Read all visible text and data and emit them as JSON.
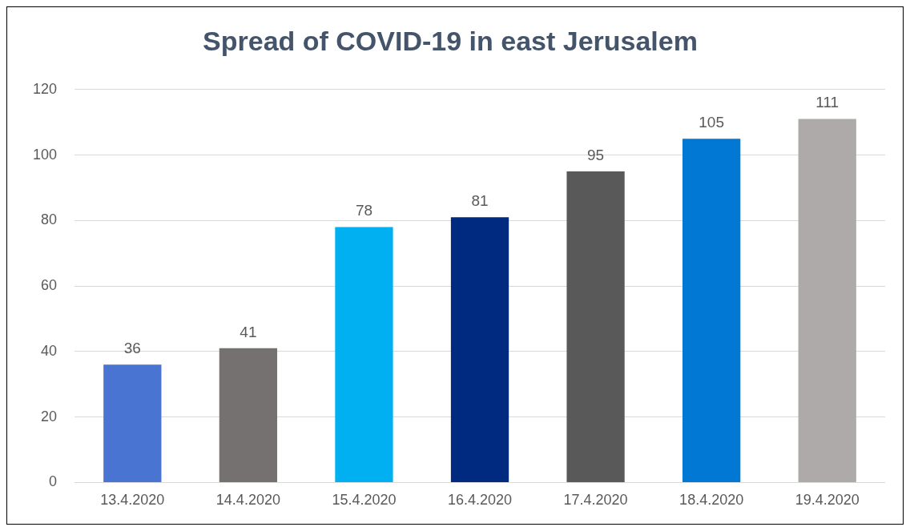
{
  "chart_data": {
    "type": "bar",
    "title": "Spread of COVID-19 in east Jerusalem",
    "categories": [
      "13.4.2020",
      "14.4.2020",
      "15.4.2020",
      "16.4.2020",
      "17.4.2020",
      "18.4.2020",
      "19.4.2020"
    ],
    "values": [
      36,
      41,
      78,
      81,
      95,
      105,
      111
    ],
    "colors": [
      "#4a74d2",
      "#767171",
      "#00b0f0",
      "#002a80",
      "#595959",
      "#0078d4",
      "#aeaaaa"
    ],
    "ylim": [
      0,
      120
    ],
    "yticks": [
      0,
      20,
      40,
      60,
      80,
      100,
      120
    ],
    "grid": "y",
    "data_labels": true,
    "legend": false
  }
}
